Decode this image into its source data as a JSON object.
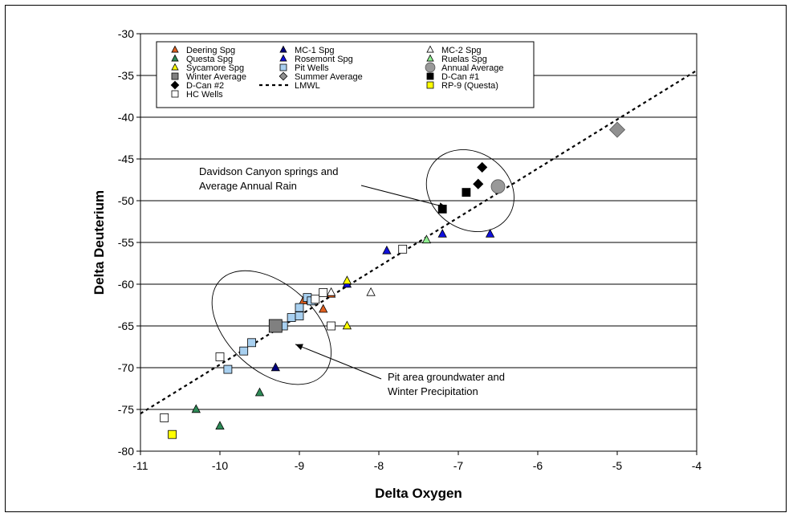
{
  "chart_data": {
    "type": "scatter",
    "xlabel": "Delta Oxygen",
    "ylabel": "Delta Deuterium",
    "xlim": [
      -11,
      -4
    ],
    "ylim": [
      -80,
      -30
    ],
    "xticks": [
      -11,
      -10,
      -9,
      -8,
      -7,
      -6,
      -5,
      -4
    ],
    "yticks": [
      -80,
      -75,
      -70,
      -65,
      -60,
      -55,
      -50,
      -45,
      -40,
      -35,
      -30
    ],
    "grid": "horizontal",
    "legend_placement": "top-left",
    "series": [
      {
        "name": "Deering Spg",
        "marker": "triangle",
        "color": "#e06020",
        "points": [
          [
            -8.95,
            -62.0
          ],
          [
            -8.7,
            -63.0
          ],
          [
            -8.6,
            -61.2
          ]
        ]
      },
      {
        "name": "MC-1 Spg",
        "marker": "triangle",
        "color": "#000080",
        "points": [
          [
            -9.3,
            -70.0
          ]
        ]
      },
      {
        "name": "MC-2 Spg",
        "marker": "triangle",
        "color": "#ffffff",
        "points": [
          [
            -8.1,
            -61.0
          ],
          [
            -8.6,
            -61.0
          ]
        ]
      },
      {
        "name": "Questa Spg",
        "marker": "triangle",
        "color": "#2e8b57",
        "points": [
          [
            -10.3,
            -75.0
          ],
          [
            -10.0,
            -77.0
          ],
          [
            -9.5,
            -73.0
          ]
        ]
      },
      {
        "name": "Rosemont Spg",
        "marker": "triangle",
        "color": "#1010dd",
        "points": [
          [
            -7.9,
            -56.0
          ],
          [
            -7.2,
            -54.0
          ],
          [
            -6.6,
            -54.0
          ],
          [
            -8.4,
            -60.0
          ]
        ]
      },
      {
        "name": "Ruelas Spg",
        "marker": "triangle",
        "color": "#90ee90",
        "points": [
          [
            -7.4,
            -54.7
          ]
        ]
      },
      {
        "name": "Sycamore Spg",
        "marker": "triangle",
        "color": "#ffff00",
        "points": [
          [
            -8.4,
            -59.6
          ],
          [
            -8.4,
            -65.0
          ]
        ]
      },
      {
        "name": "Pit Wells",
        "marker": "square",
        "color": "#a8d0f0",
        "points": [
          [
            -9.9,
            -70.2
          ],
          [
            -9.7,
            -68.0
          ],
          [
            -9.6,
            -67.0
          ],
          [
            -9.2,
            -65.0
          ],
          [
            -9.1,
            -64.0
          ],
          [
            -9.0,
            -63.8
          ],
          [
            -9.0,
            -62.8
          ],
          [
            -8.9,
            -61.6
          ],
          [
            -8.85,
            -62.0
          ]
        ]
      },
      {
        "name": "Annual Average",
        "marker": "circle",
        "color": "#999999",
        "points": [
          [
            -6.5,
            -48.3
          ]
        ]
      },
      {
        "name": "Winter Average",
        "marker": "square-large",
        "color": "#808080",
        "points": [
          [
            -9.3,
            -65.0
          ]
        ]
      },
      {
        "name": "Summer Average",
        "marker": "diamond-large",
        "color": "#909090",
        "points": [
          [
            -5.0,
            -41.5
          ]
        ]
      },
      {
        "name": "D-Can #1",
        "marker": "square",
        "color": "#000000",
        "points": [
          [
            -7.2,
            -51.0
          ],
          [
            -6.9,
            -49.0
          ]
        ]
      },
      {
        "name": "D-Can #2",
        "marker": "diamond",
        "color": "#000000",
        "points": [
          [
            -6.7,
            -46.0
          ],
          [
            -6.75,
            -48.0
          ]
        ]
      },
      {
        "name": "LMWL",
        "marker": "line",
        "color": "#000000",
        "points": [
          [
            -11,
            -75.5
          ],
          [
            -4,
            -34.4
          ]
        ]
      },
      {
        "name": "RP-9 (Questa)",
        "marker": "square",
        "color": "#ffff00",
        "points": [
          [
            -10.6,
            -78.0
          ]
        ]
      },
      {
        "name": "HC Wells",
        "marker": "square",
        "color": "#ffffff",
        "points": [
          [
            -10.7,
            -76.0
          ],
          [
            -10.0,
            -68.7
          ],
          [
            -8.8,
            -61.8
          ],
          [
            -8.7,
            -61.0
          ],
          [
            -8.6,
            -65.0
          ],
          [
            -7.7,
            -55.8
          ]
        ]
      }
    ],
    "annotations": [
      {
        "lines": [
          "Davidson Canyon springs and",
          "Average Annual Rain"
        ],
        "arrow_to": [
          -7.15,
          -50.8
        ],
        "ellipse_center": [
          -6.85,
          -48.8
        ],
        "ellipse_rx": 0.58,
        "ellipse_ry": 4.6,
        "ellipse_angle": -56
      },
      {
        "lines": [
          "Pit area groundwater and",
          "Winter Precipitation"
        ],
        "arrow_to": [
          -9.05,
          -67.2
        ],
        "ellipse_center": [
          -9.35,
          -65.2
        ],
        "ellipse_rx": 0.88,
        "ellipse_ry": 5.2,
        "ellipse_angle": -48
      }
    ]
  }
}
